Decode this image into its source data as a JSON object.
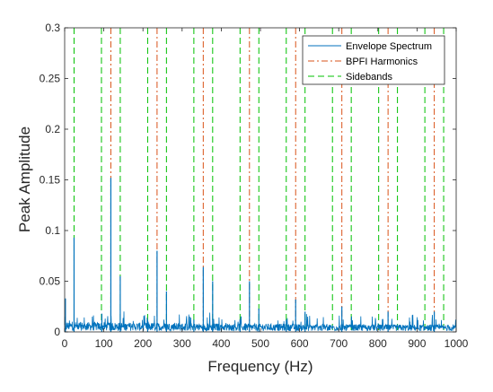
{
  "chart_data": {
    "type": "line",
    "xlabel": "Frequency (Hz)",
    "ylabel": "Peak Amplitude",
    "xlim": [
      0,
      1000
    ],
    "ylim": [
      0,
      0.3
    ],
    "xticks": [
      0,
      100,
      200,
      300,
      400,
      500,
      600,
      700,
      800,
      900,
      1000
    ],
    "xtick_labels": [
      "0",
      "100",
      "200",
      "300",
      "400",
      "500",
      "600",
      "700",
      "800",
      "900",
      "1000"
    ],
    "yticks": [
      0,
      0.05,
      0.1,
      0.15,
      0.2,
      0.25,
      0.3
    ],
    "ytick_labels": [
      "0",
      "0.05",
      "0.1",
      "0.15",
      "0.2",
      "0.25",
      "0.3"
    ],
    "grid": false,
    "legend_position": "top-right",
    "series": [
      {
        "name": "Envelope Spectrum",
        "color": "#0072BD",
        "style": "solid",
        "noise_floor": 0.008,
        "peaks": [
          {
            "x": 2,
            "y": 0.033
          },
          {
            "x": 24,
            "y": 0.093
          },
          {
            "x": 95,
            "y": 0.018
          },
          {
            "x": 118,
            "y": 0.152
          },
          {
            "x": 142,
            "y": 0.055
          },
          {
            "x": 212,
            "y": 0.012
          },
          {
            "x": 236,
            "y": 0.08
          },
          {
            "x": 260,
            "y": 0.04
          },
          {
            "x": 330,
            "y": 0.012
          },
          {
            "x": 354,
            "y": 0.064
          },
          {
            "x": 378,
            "y": 0.05
          },
          {
            "x": 448,
            "y": 0.012
          },
          {
            "x": 472,
            "y": 0.05
          },
          {
            "x": 496,
            "y": 0.023
          },
          {
            "x": 566,
            "y": 0.012
          },
          {
            "x": 590,
            "y": 0.032
          },
          {
            "x": 614,
            "y": 0.02
          },
          {
            "x": 708,
            "y": 0.025
          },
          {
            "x": 826,
            "y": 0.02
          },
          {
            "x": 944,
            "y": 0.02
          }
        ]
      },
      {
        "name": "BPFI Harmonics",
        "color": "#D95319",
        "style": "dash-dot",
        "x": [
          118,
          236,
          354,
          472,
          590,
          708,
          826,
          944
        ]
      },
      {
        "name": "Sidebands",
        "color": "#00C000",
        "style": "dashed",
        "x": [
          24,
          94,
          142,
          212,
          260,
          330,
          378,
          448,
          496,
          566,
          614,
          684,
          732,
          802,
          850,
          920,
          968
        ]
      }
    ]
  }
}
